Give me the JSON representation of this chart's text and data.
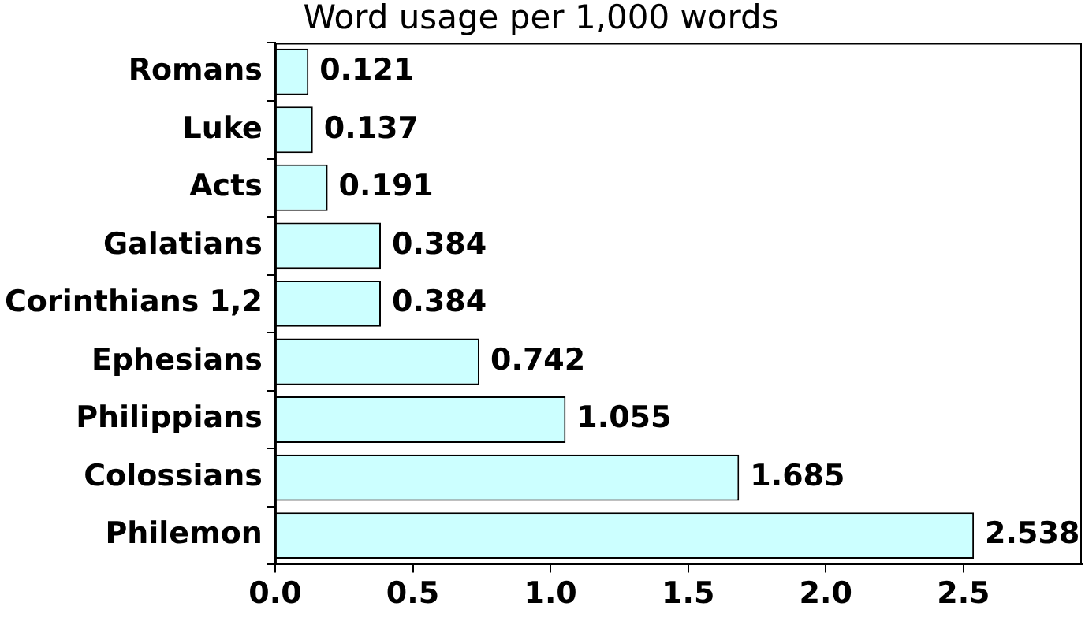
{
  "chart_data": {
    "type": "bar",
    "orientation": "horizontal",
    "title": "Word usage per 1,000 words",
    "categories": [
      "Romans",
      "Luke",
      "Acts",
      "Galatians",
      "Corinthians 1,2",
      "Ephesians",
      "Philippians",
      "Colossians",
      "Philemon"
    ],
    "values": [
      0.121,
      0.137,
      0.191,
      0.384,
      0.384,
      0.742,
      1.055,
      1.685,
      2.538
    ],
    "color": "#ccffff",
    "xlim": [
      0,
      2.93
    ],
    "xticks": [
      {
        "value": 0,
        "label": "0.0"
      },
      {
        "value": 0.5,
        "label": "0.5"
      },
      {
        "value": 1,
        "label": "1.0"
      },
      {
        "value": 1.5,
        "label": "1.5"
      },
      {
        "value": 2,
        "label": "2.0"
      },
      {
        "value": 2.5,
        "label": "2.5"
      }
    ],
    "value_labels": [
      "0.121",
      "0.137",
      "0.191",
      "0.384",
      "0.384",
      "0.742",
      "1.055",
      "1.685",
      "2.538"
    ],
    "grid": false,
    "legend": false
  }
}
